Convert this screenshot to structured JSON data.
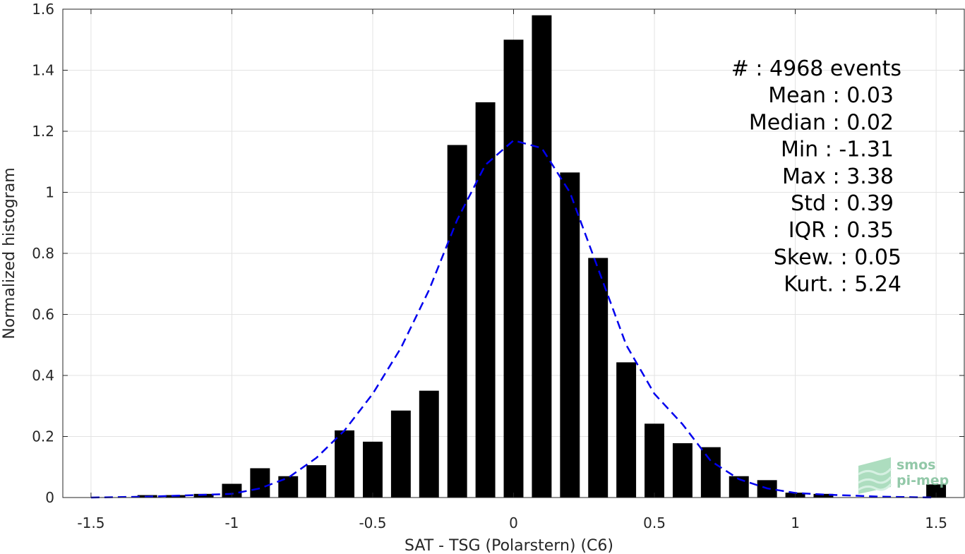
{
  "chart_data": {
    "type": "bar",
    "xlabel": "SAT - TSG (Polarstern) (C6)",
    "ylabel": "Normalized histogram",
    "xlim": [
      -1.6,
      1.6
    ],
    "ylim": [
      0,
      1.6
    ],
    "grid": true,
    "x_ticks": [
      -1.5,
      -1,
      -0.5,
      0,
      0.5,
      1,
      1.5
    ],
    "x_tick_labels": [
      "-1.5",
      "-1",
      "-0.5",
      "0",
      "0.5",
      "1",
      "1.5"
    ],
    "y_ticks": [
      0,
      0.2,
      0.4,
      0.6,
      0.8,
      1,
      1.2,
      1.4,
      1.6
    ],
    "y_tick_labels": [
      "0",
      "0.2",
      "0.4",
      "0.6",
      "0.8",
      "1",
      "1.2",
      "1.4",
      "1.6"
    ],
    "bar_width": 0.07,
    "series": [
      {
        "type": "bar",
        "color": "#000000",
        "x": [
          -1.5,
          -1.4,
          -1.3,
          -1.2,
          -1.1,
          -1.0,
          -0.9,
          -0.8,
          -0.7,
          -0.6,
          -0.5,
          -0.4,
          -0.3,
          -0.2,
          -0.1,
          0.0,
          0.1,
          0.2,
          0.3,
          0.4,
          0.5,
          0.6,
          0.7,
          0.8,
          0.9,
          1.0,
          1.1,
          1.2,
          1.3,
          1.4,
          1.5
        ],
        "values": [
          0,
          0,
          0.008,
          0.008,
          0.012,
          0.045,
          0.096,
          0.07,
          0.106,
          0.22,
          0.183,
          0.285,
          0.35,
          1.155,
          1.295,
          1.5,
          1.58,
          1.065,
          0.785,
          0.443,
          0.242,
          0.178,
          0.165,
          0.07,
          0.057,
          0.016,
          0.012,
          0,
          0,
          0,
          0.043
        ]
      },
      {
        "type": "line",
        "style": "dashed",
        "color": "#0000ee",
        "x": [
          -1.5,
          -1.3,
          -1.1,
          -1.0,
          -0.9,
          -0.8,
          -0.7,
          -0.6,
          -0.5,
          -0.4,
          -0.3,
          -0.2,
          -0.1,
          0.0,
          0.1,
          0.2,
          0.3,
          0.4,
          0.5,
          0.6,
          0.7,
          0.8,
          0.9,
          1.0,
          1.1,
          1.3,
          1.5
        ],
        "values": [
          0,
          0.003,
          0.009,
          0.012,
          0.03,
          0.065,
          0.13,
          0.22,
          0.34,
          0.49,
          0.68,
          0.91,
          1.09,
          1.17,
          1.145,
          1.0,
          0.75,
          0.5,
          0.34,
          0.24,
          0.12,
          0.06,
          0.03,
          0.015,
          0.01,
          0.003,
          0
        ]
      }
    ],
    "annotations": [
      "#  : 4968 events",
      "Mean : 0.03",
      "Median : 0.02",
      "Min : -1.31",
      "Max : 3.38",
      "Std : 0.39",
      "IQR : 0.35",
      "Skew. : 0.05",
      "Kurt. : 5.24"
    ]
  },
  "logo": {
    "line1": "smos",
    "line2": "pi-mep"
  }
}
